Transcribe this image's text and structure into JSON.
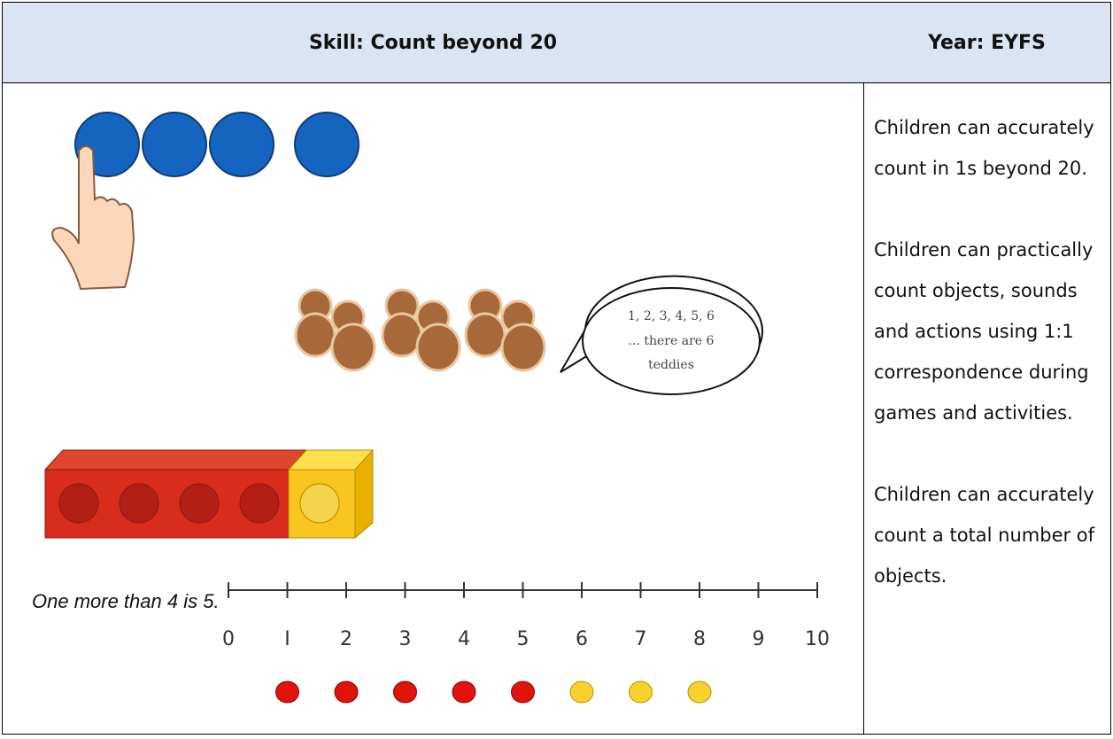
{
  "header": {
    "skill": "Skill: Count beyond 20",
    "year": "Year: EYFS"
  },
  "objectives": [
    "Children can accurately count in 1s beyond 20.",
    "Children can practically count objects, sounds and actions using 1:1 correspondence during games and activities.",
    "Children can accurately count a total number of objects."
  ],
  "speech_bubble": [
    "1, 2, 3, 4, 5, 6",
    "... there are 6",
    "teddies"
  ],
  "caption": "One more than 4 is 5.",
  "number_line": {
    "labels": [
      "0",
      "I",
      "2",
      "3",
      "4",
      "5",
      "6",
      "7",
      "8",
      "9",
      "10"
    ]
  }
}
